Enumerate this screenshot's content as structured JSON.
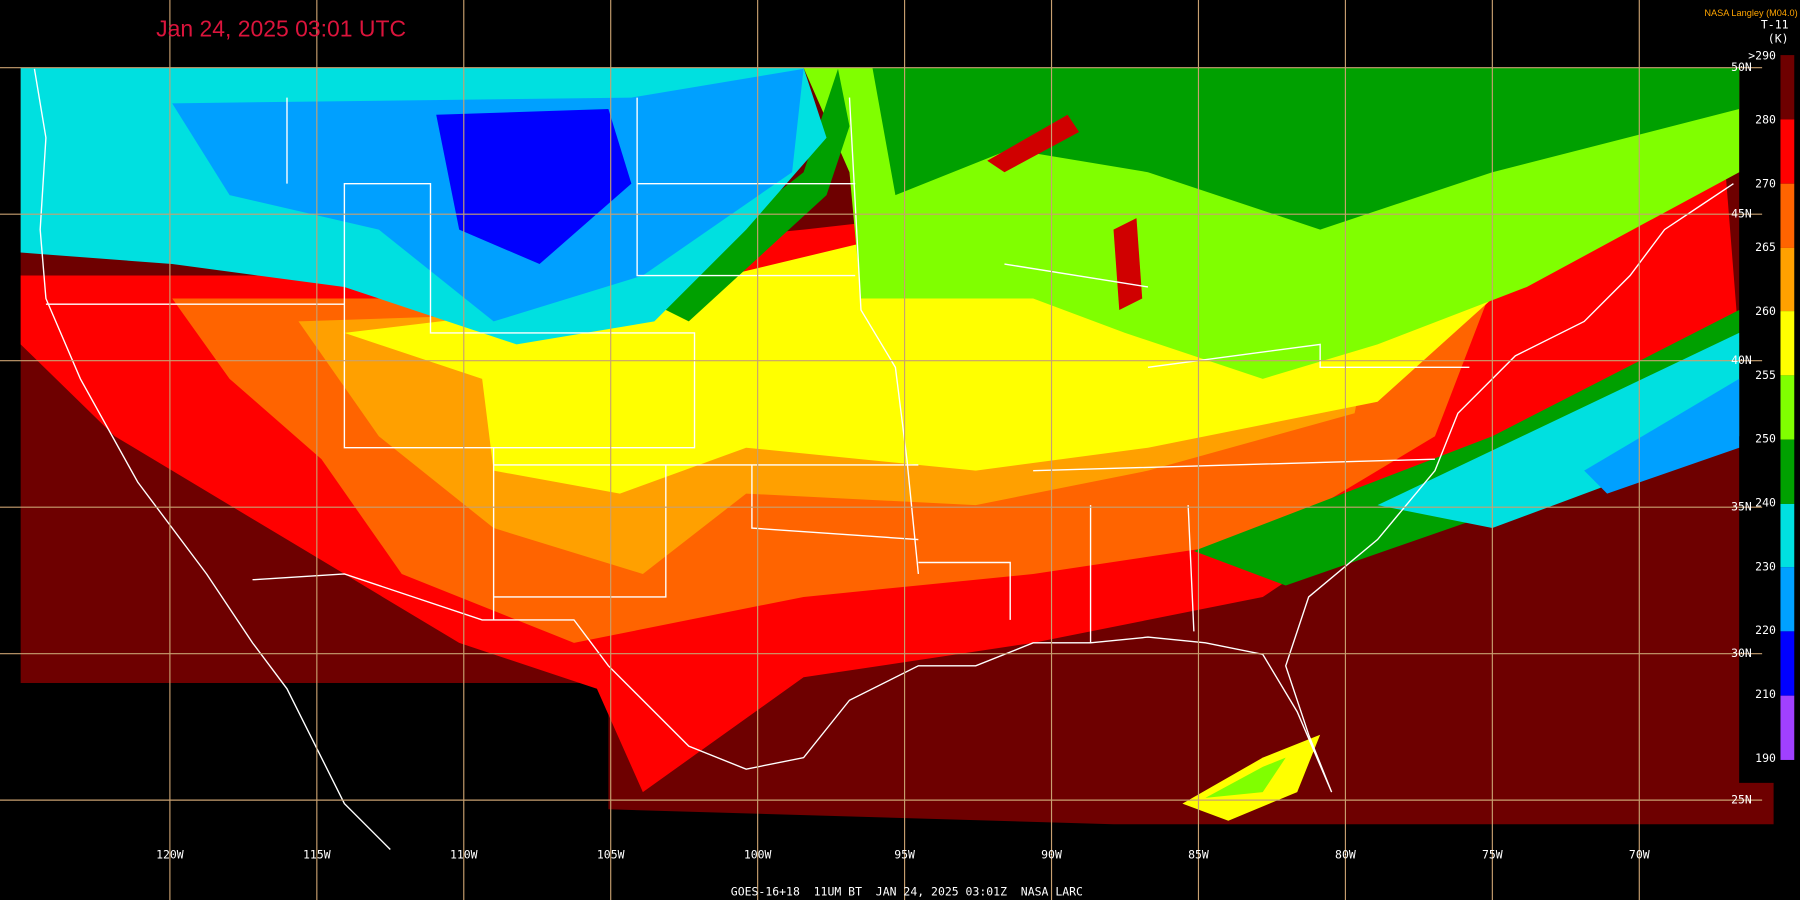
{
  "header": {
    "timestamp": "Jan 24, 2025 03:01 UTC",
    "source": "NASA Langley (M04.0)",
    "channel": "T-11",
    "unit": "(K)"
  },
  "colorbar": {
    "labels": [
      ">290",
      "280",
      "270",
      "265",
      "260",
      "255",
      "250",
      "240",
      "230",
      "220",
      "210",
      "190"
    ]
  },
  "longitude_labels": [
    "120W",
    "115W",
    "110W",
    "105W",
    "100W",
    "95W",
    "90W",
    "85W",
    "80W",
    "75W",
    "70W"
  ],
  "latitude_labels": [
    "50N",
    "45N",
    "40N",
    "35N",
    "30N",
    "25N"
  ],
  "footer": "GOES-16+18  11UM BT  JAN 24, 2025 03:01Z  NASA LARC"
}
